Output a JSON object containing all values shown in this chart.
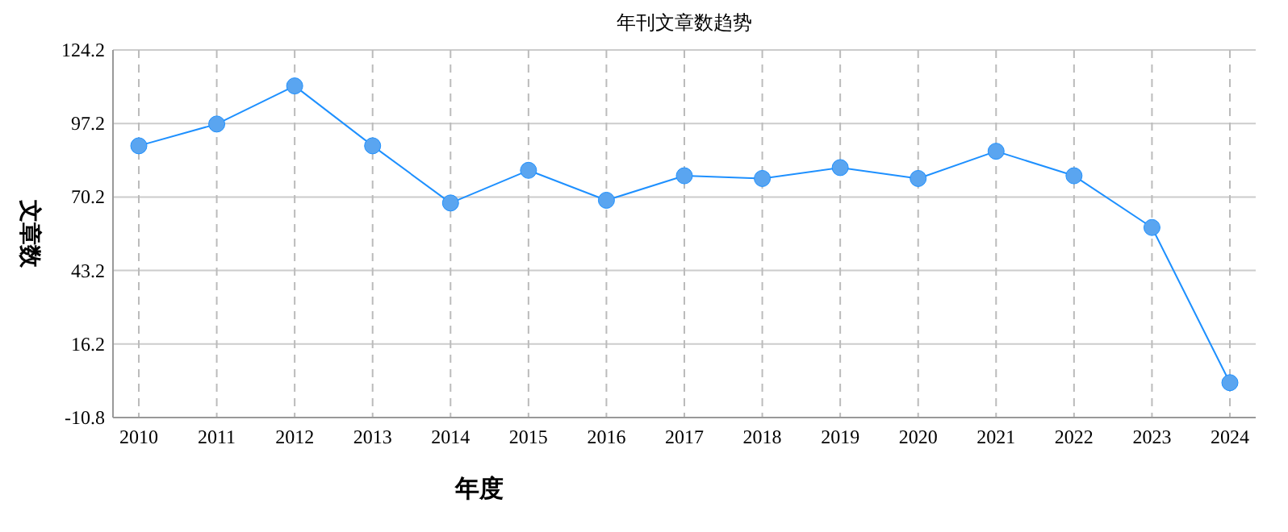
{
  "chart_data": {
    "type": "line",
    "title": "年刊文章数趋势",
    "xlabel": "年度",
    "ylabel": "文章数",
    "categories": [
      "2010",
      "2011",
      "2012",
      "2013",
      "2014",
      "2015",
      "2016",
      "2017",
      "2018",
      "2019",
      "2020",
      "2021",
      "2022",
      "2023",
      "2024"
    ],
    "series": [
      {
        "color": "#1e90ff",
        "values": [
          89,
          97,
          111,
          89,
          68,
          80,
          69,
          78,
          77,
          81,
          77,
          87,
          78,
          59,
          2
        ]
      }
    ],
    "ylim": [
      -10.8,
      124.2
    ],
    "yticks": [
      -10.8,
      16.2,
      43.2,
      70.2,
      97.2,
      124.2
    ],
    "grid": true,
    "marker": "circle",
    "line_style": "solid"
  }
}
